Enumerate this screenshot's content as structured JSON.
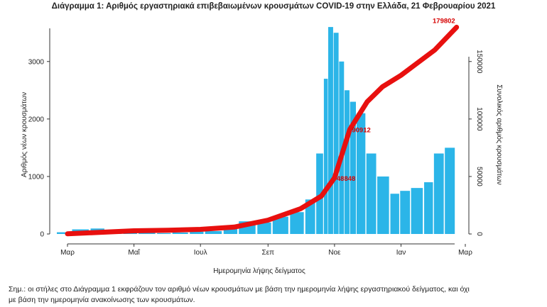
{
  "title": "Διάγραμμα 1: Αριθμός εργαστηριακά επιβεβαιωμένων κρουσμάτων COVID-19 στην Ελλάδα, 21 Φεβρουαρίου 2021",
  "note_line1": "Σημ.: οι στήλες στο Διάγραμμα 1 εκφράζουν τον αριθμό νέων κρουσμάτων με βάση την ημερομηνία λήψης εργαστηριακού δείγματος, και όχι",
  "note_line2": "με βάση την ημερομηνία ανακοίνωσης των κρουσμάτων.",
  "chart_data": {
    "type": "bar",
    "xlabel": "Ημερομηνία λήψης δείγματος",
    "ylabel": "Αριθμός νέων κρουσμάτων",
    "y2label": "Συνολικός αριθμός κρουσμάτων",
    "ylim": [
      0,
      3700
    ],
    "y2lim": [
      0,
      185000
    ],
    "yticks": [
      0,
      1000,
      2000,
      3000
    ],
    "y2ticks": [
      0,
      50000,
      100000,
      150000
    ],
    "y2ticklabels": [
      "0",
      "50000",
      "100000",
      "150000"
    ],
    "month_ticks": [
      "Μαρ",
      "Μαΐ",
      "Ιουλ",
      "Σεπ",
      "Νοε",
      "Ιαν",
      "Μαρ"
    ],
    "bar_color": "#2bb5e8",
    "line_color": "#e8100f",
    "annotations": [
      "179802",
      "90912",
      "48848"
    ],
    "series": [
      {
        "type": "bar",
        "x": [
          "2020-03-01",
          "2020-03-15",
          "2020-04-01",
          "2020-04-15",
          "2020-05-01",
          "2020-05-15",
          "2020-06-01",
          "2020-06-15",
          "2020-07-01",
          "2020-07-15",
          "2020-08-01",
          "2020-08-15",
          "2020-09-01",
          "2020-09-15",
          "2020-10-01",
          "2020-10-15",
          "2020-10-25",
          "2020-11-01",
          "2020-11-05",
          "2020-11-10",
          "2020-11-15",
          "2020-11-20",
          "2020-11-25",
          "2020-12-01",
          "2020-12-10",
          "2020-12-20",
          "2021-01-01",
          "2021-01-10",
          "2021-01-20",
          "2021-02-01",
          "2021-02-10",
          "2021-02-20"
        ],
        "values": [
          30,
          80,
          95,
          60,
          35,
          20,
          15,
          25,
          40,
          50,
          120,
          220,
          200,
          300,
          380,
          600,
          1400,
          2700,
          3600,
          3500,
          3000,
          2500,
          2300,
          2100,
          1400,
          1000,
          700,
          750,
          800,
          900,
          1400,
          1500
        ]
      },
      {
        "type": "line",
        "x": [
          "2020-03-01",
          "2020-04-01",
          "2020-05-01",
          "2020-06-01",
          "2020-07-01",
          "2020-08-01",
          "2020-09-01",
          "2020-10-01",
          "2020-10-20",
          "2020-11-01",
          "2020-11-15",
          "2020-12-01",
          "2020-12-15",
          "2021-01-01",
          "2021-01-15",
          "2021-02-01",
          "2021-02-21"
        ],
        "values": [
          100,
          1500,
          2800,
          3200,
          4000,
          6000,
          12000,
          22000,
          33000,
          48848,
          90912,
          115000,
          128000,
          138000,
          148000,
          160000,
          179802
        ]
      }
    ]
  }
}
